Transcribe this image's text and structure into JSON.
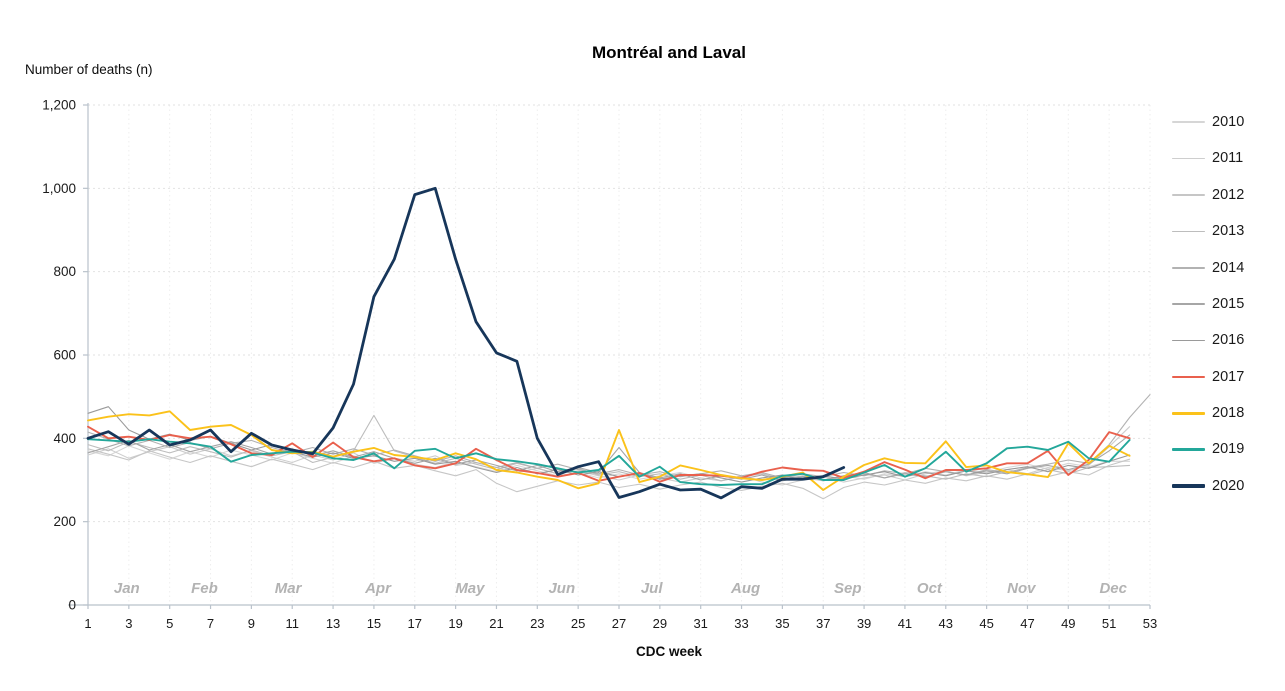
{
  "header": {
    "title": "Montréal and Laval"
  },
  "styles": {
    "axis_color": "#b9c2cb",
    "gridline_color": "#e2e2e2",
    "month_label_color": "#b3b3b3",
    "tick_label_color": "#1a1a1a",
    "accent_2017": "#e9604d",
    "accent_2018": "#fbc21a",
    "accent_2019": "#23a79a",
    "accent_2020": "#17365a"
  },
  "chart_data": {
    "type": "line",
    "title": "Montréal and Laval",
    "xlabel": "CDC week",
    "ylabel": "Number of deaths (n)",
    "ylim": [
      0,
      1200
    ],
    "ytick_step": 200,
    "xlim_weeks": [
      1,
      53
    ],
    "grid": true,
    "legend_position": "right",
    "xticks": [
      1,
      3,
      5,
      7,
      9,
      11,
      13,
      15,
      17,
      19,
      21,
      23,
      25,
      27,
      29,
      31,
      33,
      35,
      37,
      39,
      41,
      43,
      45,
      47,
      49,
      51,
      53
    ],
    "months": [
      {
        "label": "Jan",
        "week": 2.9
      },
      {
        "label": "Feb",
        "week": 6.7
      },
      {
        "label": "Mar",
        "week": 10.8
      },
      {
        "label": "Apr",
        "week": 15.2
      },
      {
        "label": "May",
        "week": 19.7
      },
      {
        "label": "Jun",
        "week": 24.2
      },
      {
        "label": "Jul",
        "week": 28.6
      },
      {
        "label": "Aug",
        "week": 33.2
      },
      {
        "label": "Sep",
        "week": 38.2
      },
      {
        "label": "Oct",
        "week": 42.2
      },
      {
        "label": "Nov",
        "week": 46.7
      },
      {
        "label": "Dec",
        "week": 51.2
      }
    ],
    "series": [
      {
        "name": "2010",
        "color": "#d6d6d6",
        "width": 1.1,
        "values": [
          370,
          358,
          382,
          365,
          350,
          368,
          355,
          372,
          360,
          348,
          365,
          352,
          340,
          358,
          345,
          352,
          338,
          330,
          345,
          332,
          320,
          335,
          322,
          310,
          318,
          305,
          315,
          302,
          310,
          318,
          305,
          298,
          308,
          300,
          312,
          305,
          298,
          310,
          302,
          315,
          308,
          320,
          312,
          325,
          318,
          330,
          338,
          326,
          340,
          332,
          345,
          345
        ]
      },
      {
        "name": "2011",
        "color": "#cecece",
        "width": 1.1,
        "values": [
          360,
          375,
          352,
          368,
          380,
          362,
          375,
          358,
          370,
          355,
          342,
          360,
          348,
          365,
          340,
          352,
          345,
          358,
          335,
          342,
          330,
          318,
          328,
          315,
          322,
          310,
          300,
          312,
          305,
          295,
          305,
          298,
          310,
          295,
          288,
          300,
          308,
          295,
          305,
          312,
          300,
          315,
          322,
          310,
          318,
          325,
          315,
          330,
          322,
          335,
          380,
          428
        ]
      },
      {
        "name": "2012",
        "color": "#c6c6c6",
        "width": 1.1,
        "values": [
          375,
          362,
          348,
          370,
          355,
          342,
          358,
          345,
          332,
          350,
          338,
          325,
          342,
          330,
          345,
          328,
          335,
          322,
          310,
          325,
          292,
          272,
          285,
          298,
          288,
          295,
          282,
          290,
          278,
          288,
          295,
          282,
          275,
          285,
          292,
          280,
          255,
          282,
          295,
          288,
          300,
          292,
          305,
          298,
          310,
          302,
          315,
          308,
          320,
          312,
          335,
          350
        ]
      },
      {
        "name": "2013",
        "color": "#bdbdbd",
        "width": 1.1,
        "values": [
          385,
          370,
          392,
          378,
          365,
          380,
          368,
          355,
          372,
          358,
          368,
          342,
          355,
          370,
          455,
          370,
          355,
          340,
          352,
          338,
          325,
          340,
          328,
          315,
          328,
          312,
          320,
          308,
          315,
          302,
          312,
          298,
          308,
          315,
          302,
          310,
          298,
          308,
          315,
          305,
          318,
          310,
          302,
          315,
          308,
          320,
          312,
          325,
          315,
          330,
          332,
          335
        ]
      },
      {
        "name": "2014",
        "color": "#b2b2b2",
        "width": 1.1,
        "values": [
          415,
          398,
          382,
          395,
          378,
          390,
          375,
          388,
          395,
          378,
          365,
          378,
          362,
          375,
          360,
          372,
          358,
          345,
          358,
          342,
          330,
          342,
          328,
          338,
          325,
          315,
          325,
          312,
          320,
          308,
          315,
          322,
          310,
          318,
          305,
          315,
          308,
          318,
          310,
          322,
          315,
          328,
          320,
          312,
          325,
          318,
          330,
          338,
          348,
          340,
          385,
          450,
          505
        ]
      },
      {
        "name": "2015",
        "color": "#a6a6a6",
        "width": 1.1,
        "values": [
          365,
          380,
          395,
          372,
          385,
          368,
          380,
          392,
          378,
          362,
          375,
          358,
          370,
          355,
          368,
          352,
          340,
          352,
          338,
          348,
          335,
          322,
          335,
          320,
          330,
          318,
          378,
          318,
          305,
          315,
          300,
          310,
          302,
          312,
          298,
          308,
          300,
          310,
          318,
          305,
          315,
          308,
          320,
          312,
          322,
          315,
          328,
          335,
          325,
          338,
          370,
          408
        ]
      },
      {
        "name": "2016",
        "color": "#9a9a9a",
        "width": 1.1,
        "values": [
          460,
          476,
          420,
          398,
          410,
          395,
          405,
          388,
          372,
          385,
          368,
          355,
          365,
          352,
          358,
          345,
          352,
          338,
          345,
          330,
          318,
          330,
          315,
          325,
          312,
          320,
          308,
          315,
          302,
          310,
          315,
          305,
          295,
          305,
          312,
          300,
          310,
          302,
          312,
          320,
          308,
          318,
          310,
          322,
          315,
          325,
          332,
          320,
          335,
          328,
          345,
          360
        ]
      },
      {
        "name": "2017",
        "color": "#e9604d",
        "width": 1.9,
        "values": [
          428,
          400,
          404,
          396,
          408,
          400,
          404,
          386,
          364,
          360,
          388,
          355,
          390,
          355,
          345,
          352,
          335,
          328,
          340,
          375,
          348,
          324,
          317,
          308,
          317,
          298,
          308,
          317,
          296,
          312,
          312,
          310,
          305,
          320,
          330,
          324,
          322,
          305,
          320,
          343,
          325,
          304,
          324,
          324,
          328,
          340,
          340,
          370,
          312,
          348,
          415,
          400
        ]
      },
      {
        "name": "2018",
        "color": "#fbc21a",
        "width": 1.9,
        "values": [
          443,
          452,
          458,
          455,
          465,
          420,
          428,
          432,
          408,
          372,
          364,
          368,
          356,
          368,
          377,
          360,
          355,
          348,
          364,
          350,
          324,
          318,
          308,
          300,
          280,
          292,
          420,
          295,
          308,
          335,
          324,
          312,
          304,
          300,
          308,
          318,
          276,
          308,
          336,
          352,
          341,
          340,
          393,
          331,
          335,
          319,
          314,
          307,
          388,
          340,
          382,
          358
        ]
      },
      {
        "name": "2019",
        "color": "#23a79a",
        "width": 1.9,
        "values": [
          398,
          395,
          392,
          398,
          392,
          388,
          380,
          344,
          360,
          364,
          368,
          366,
          352,
          348,
          364,
          328,
          370,
          375,
          352,
          364,
          350,
          345,
          338,
          328,
          318,
          324,
          358,
          308,
          332,
          295,
          290,
          288,
          290,
          290,
          310,
          315,
          300,
          300,
          318,
          336,
          308,
          328,
          368,
          320,
          340,
          376,
          380,
          372,
          392,
          352,
          344,
          396
        ]
      },
      {
        "name": "2020",
        "color": "#17365a",
        "width": 2.8,
        "values": [
          400,
          416,
          386,
          420,
          384,
          396,
          420,
          368,
          412,
          384,
          372,
          363,
          425,
          530,
          740,
          830,
          985,
          1000,
          830,
          680,
          605,
          585,
          400,
          313,
          332,
          344,
          258,
          272,
          290,
          276,
          278,
          257,
          284,
          280,
          302,
          302,
          308,
          330
        ]
      }
    ]
  }
}
